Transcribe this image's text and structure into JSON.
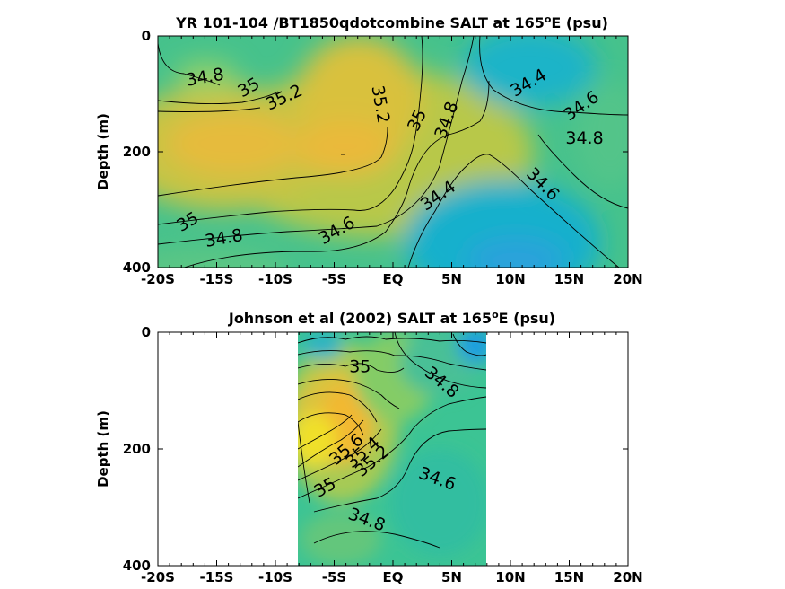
{
  "chart_data": [
    {
      "type": "contour",
      "title_main": "YR 101-104 /BT1850qdotcombine SALT at 165",
      "title_sup": "o",
      "title_tail": "E (psu)",
      "ylabel": "Depth (m)",
      "xlim": [
        -20,
        20
      ],
      "ylim": [
        0,
        400
      ],
      "y_reversed": true,
      "x_ticks": [
        -20,
        -15,
        -10,
        -5,
        0,
        5,
        10,
        15,
        20
      ],
      "x_tick_labels": [
        "-20S",
        "-15S",
        "-10S",
        "-5S",
        "EQ",
        "5N",
        "10N",
        "15N",
        "20N"
      ],
      "y_ticks": [
        0,
        200,
        400
      ],
      "y_tick_labels": [
        "0",
        "200",
        "400"
      ],
      "data_extent": [
        -20,
        20
      ],
      "contour_labels": [
        {
          "text": "34.8",
          "x": -16.0,
          "y": 70,
          "rot": -10
        },
        {
          "text": "35",
          "x": -12.3,
          "y": 88,
          "rot": -30
        },
        {
          "text": "35.2",
          "x": -9.3,
          "y": 105,
          "rot": -25
        },
        {
          "text": "35.2",
          "x": -1.0,
          "y": 118,
          "rot": 80
        },
        {
          "text": "35",
          "x": 2.0,
          "y": 145,
          "rot": -65
        },
        {
          "text": "34.8",
          "x": 4.5,
          "y": 145,
          "rot": -70
        },
        {
          "text": "34.4",
          "x": 11.5,
          "y": 80,
          "rot": -30
        },
        {
          "text": "34.6",
          "x": 16.0,
          "y": 120,
          "rot": -35
        },
        {
          "text": "34.8",
          "x": 16.3,
          "y": 175,
          "rot": 0
        },
        {
          "text": "34.6",
          "x": 12.8,
          "y": 255,
          "rot": 45
        },
        {
          "text": "34.4",
          "x": 3.8,
          "y": 275,
          "rot": -35
        },
        {
          "text": "34.6",
          "x": -4.8,
          "y": 335,
          "rot": -30
        },
        {
          "text": "34.8",
          "x": -14.4,
          "y": 348,
          "rot": -10
        },
        {
          "text": "35",
          "x": -17.5,
          "y": 320,
          "rot": -30
        }
      ]
    },
    {
      "type": "contour",
      "title_main": "Johnson et al (2002) SALT at 165",
      "title_sup": "o",
      "title_tail": "E (psu)",
      "ylabel": "Depth (m)",
      "xlim": [
        -20,
        20
      ],
      "ylim": [
        0,
        400
      ],
      "y_reversed": true,
      "x_ticks": [
        -20,
        -15,
        -10,
        -5,
        0,
        5,
        10,
        15,
        20
      ],
      "x_tick_labels": [
        "-20S",
        "-15S",
        "-10S",
        "-5S",
        "EQ",
        "5N",
        "10N",
        "15N",
        "20N"
      ],
      "y_ticks": [
        0,
        200,
        400
      ],
      "y_tick_labels": [
        "0",
        "200",
        "400"
      ],
      "data_extent": [
        -8,
        8
      ],
      "contour_labels": [
        {
          "text": "35",
          "x": -2.8,
          "y": 58,
          "rot": 0
        },
        {
          "text": "34.8",
          "x": 4.2,
          "y": 85,
          "rot": 40
        },
        {
          "text": "35.6",
          "x": -4.0,
          "y": 200,
          "rot": -40
        },
        {
          "text": "35.4",
          "x": -2.6,
          "y": 205,
          "rot": -40
        },
        {
          "text": "35.2",
          "x": -1.8,
          "y": 220,
          "rot": -40
        },
        {
          "text": "34.6",
          "x": 3.8,
          "y": 250,
          "rot": 20
        },
        {
          "text": "35",
          "x": -5.8,
          "y": 265,
          "rot": -30
        },
        {
          "text": "34.8",
          "x": -2.2,
          "y": 320,
          "rot": 20
        }
      ]
    }
  ]
}
